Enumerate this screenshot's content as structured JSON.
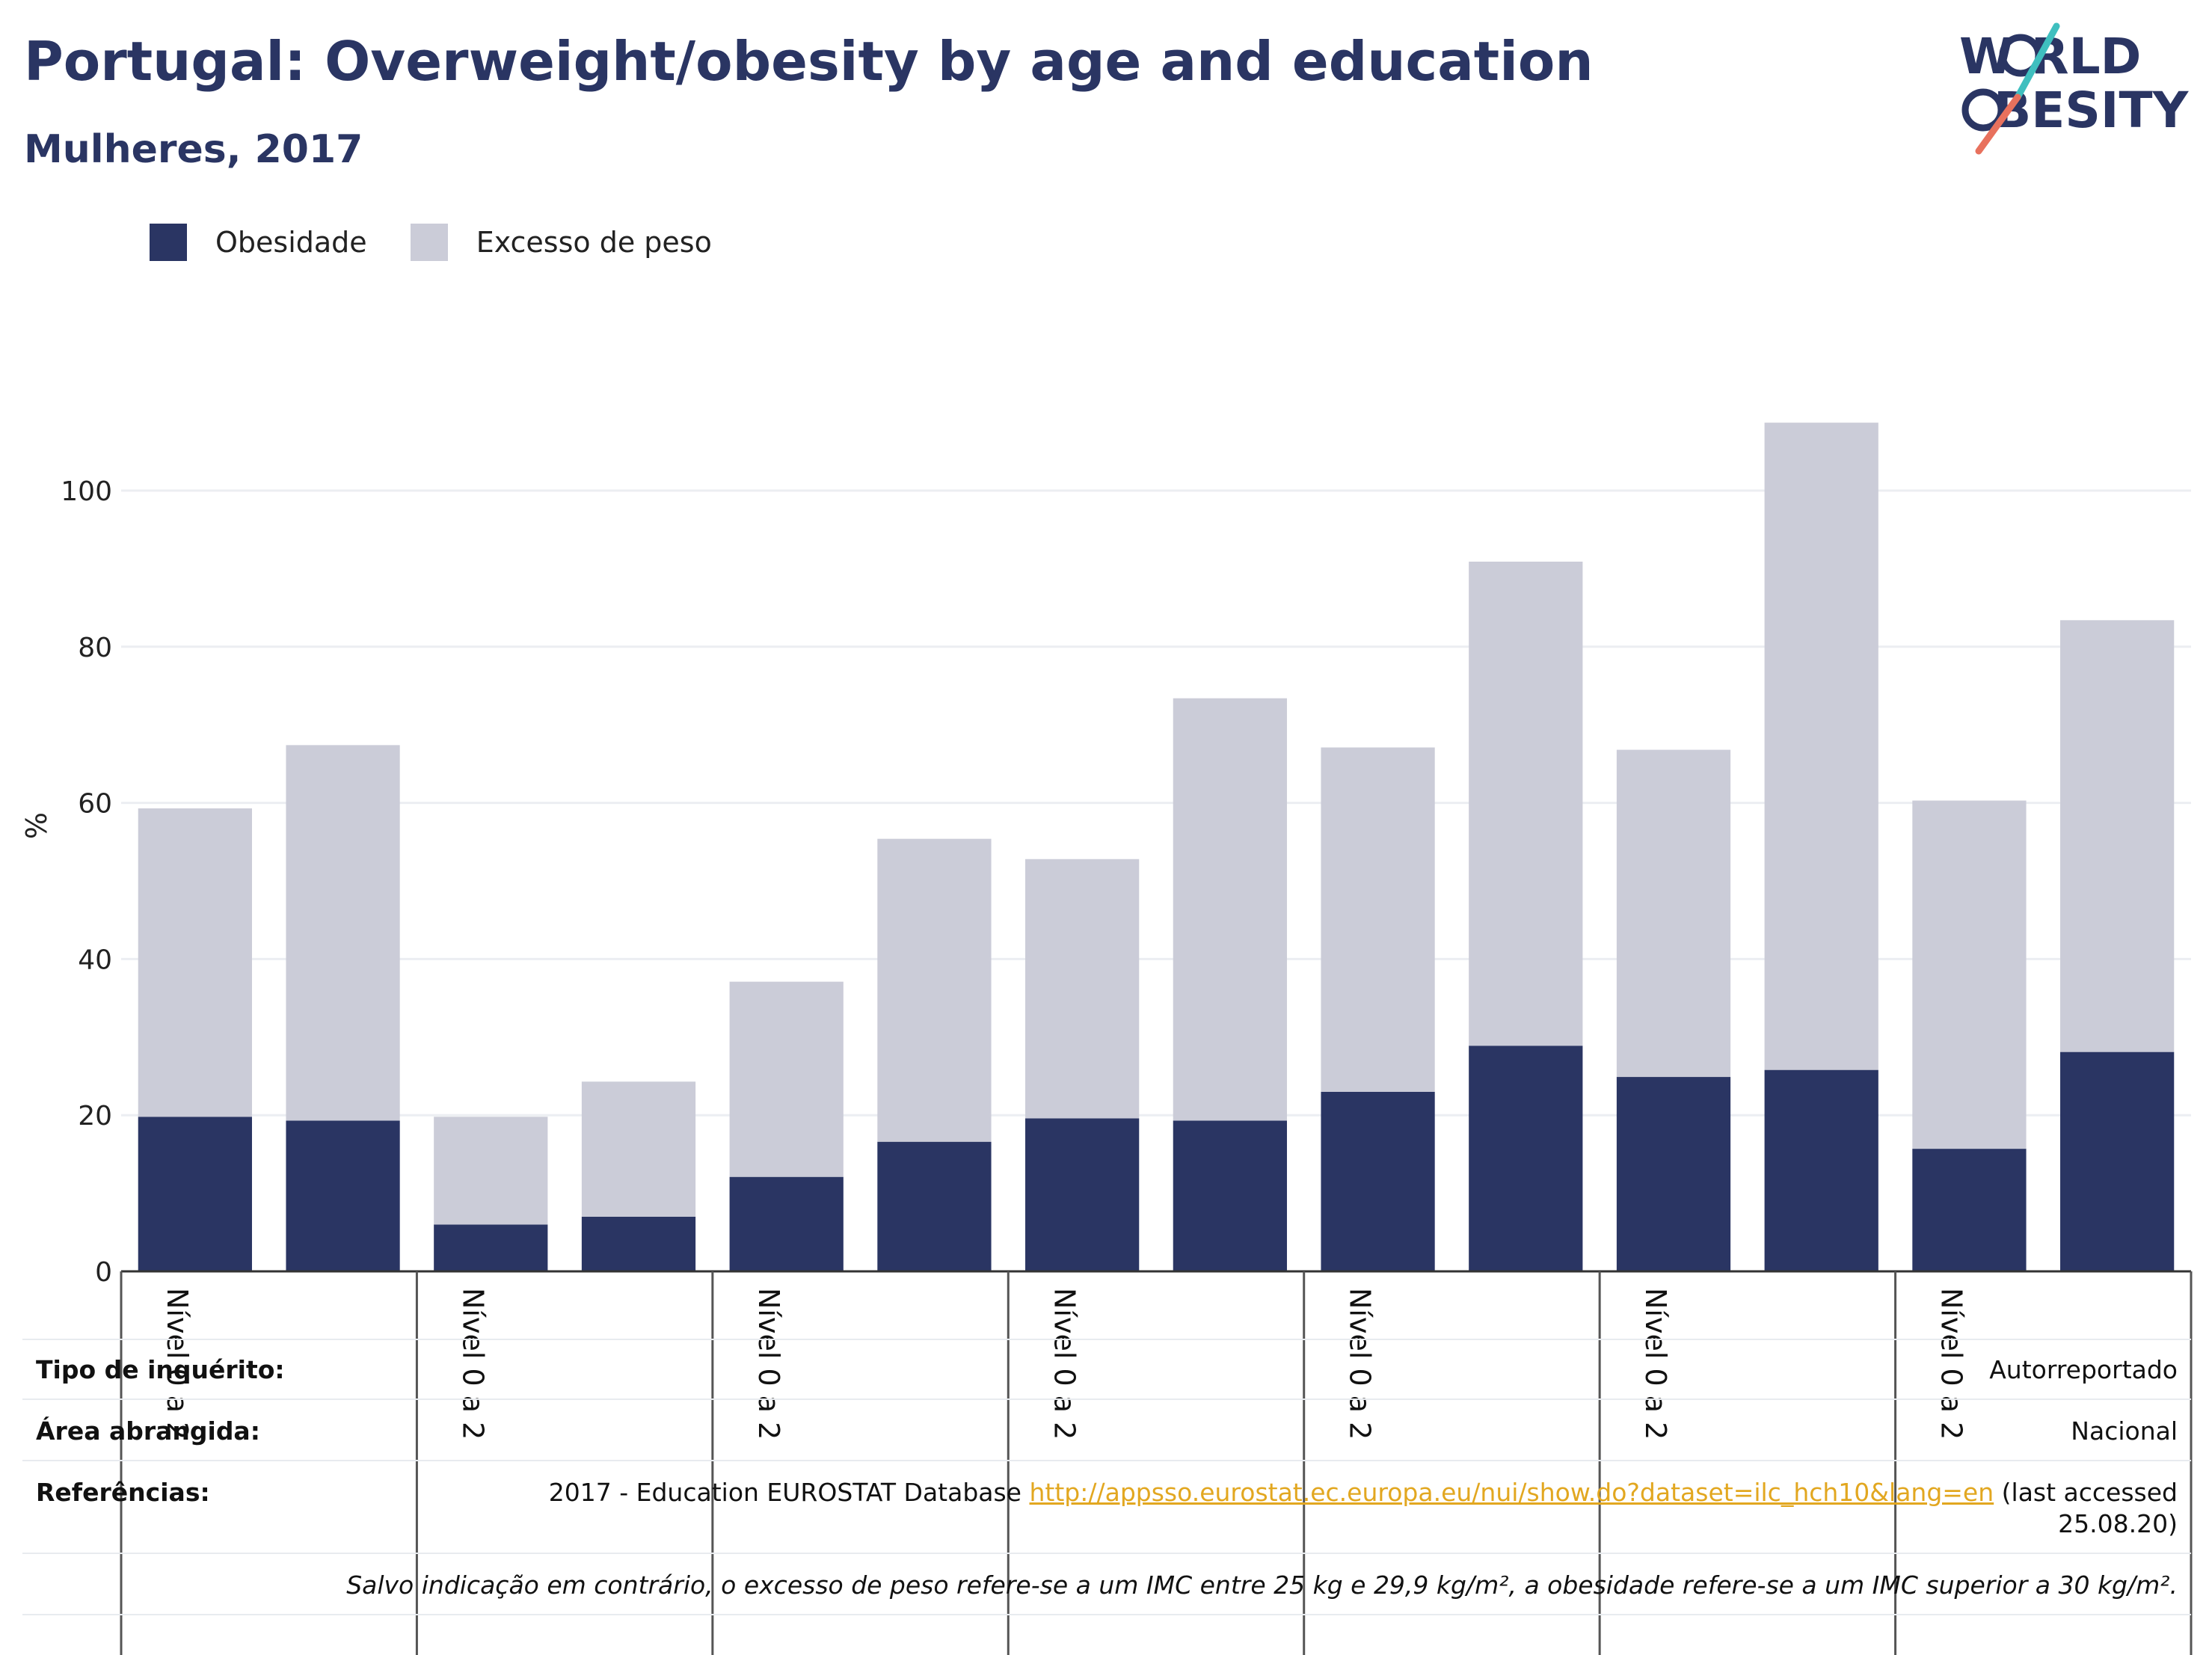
{
  "header": {
    "title": "Portugal: Overweight/obesity by age and education",
    "subtitle": "Mulheres, 2017"
  },
  "logo": {
    "line1": "W  RLD",
    "line2": "BESITY"
  },
  "colors": {
    "obesity": "#2a3563",
    "overweight": "#cbccd8",
    "grid": "#eceef2",
    "logo_teal": "#3fbfbf",
    "logo_coral": "#e8715d"
  },
  "chart_data": {
    "type": "bar",
    "stacked": true,
    "ylabel": "%",
    "ylim": [
      0,
      110
    ],
    "yticks": [
      0,
      20,
      40,
      60,
      80,
      100
    ],
    "grid": true,
    "legend_position": "top-left",
    "categories": [
      "Nível 0 a 2",
      "",
      "Nível 0 a 2",
      "",
      "Nível 0 a 2",
      "",
      "Nível 0 a 2",
      "",
      "Nível 0 a 2",
      "",
      "Nível 0 a 2",
      "",
      "Nível 0 a 2",
      ""
    ],
    "group_labels": [
      "Nível 0 a 2",
      "Nível 0 a 2",
      "Nível 0 a 2",
      "Nível 0 a 2",
      "Nível 0 a 2",
      "Nível 0 a 2",
      "Nível 0 a 2"
    ],
    "series": [
      {
        "name": "Obesidade",
        "values": [
          19.8,
          19.3,
          6.0,
          7.0,
          12.1,
          16.6,
          19.6,
          19.3,
          23.0,
          28.9,
          24.9,
          25.8,
          15.7,
          28.1
        ]
      },
      {
        "name": "Excesso de peso",
        "values": [
          39.5,
          48.1,
          13.8,
          17.3,
          25.0,
          38.8,
          33.2,
          54.1,
          44.1,
          62.0,
          41.9,
          82.9,
          44.6,
          55.3
        ]
      }
    ]
  },
  "info": {
    "survey_label": "Tipo de inquérito:",
    "survey_value": "Autorreportado",
    "area_label": "Área abrangida:",
    "area_value": "Nacional",
    "refs_label": "Referências:",
    "refs_text": "2017 - Education EUROSTAT Database",
    "refs_link": "http://appsso.eurostat.ec.europa.eu/nui/show.do?dataset=ilc_hch10&lang=en",
    "refs_suffix_1": "(last accessed",
    "refs_suffix_2": "25.08.20)",
    "note": "Salvo indicação em contrário, o excesso de peso refere-se a um IMC entre 25 kg e 29,9 kg/m², a obesidade refere-se a um IMC superior a 30 kg/m²."
  }
}
